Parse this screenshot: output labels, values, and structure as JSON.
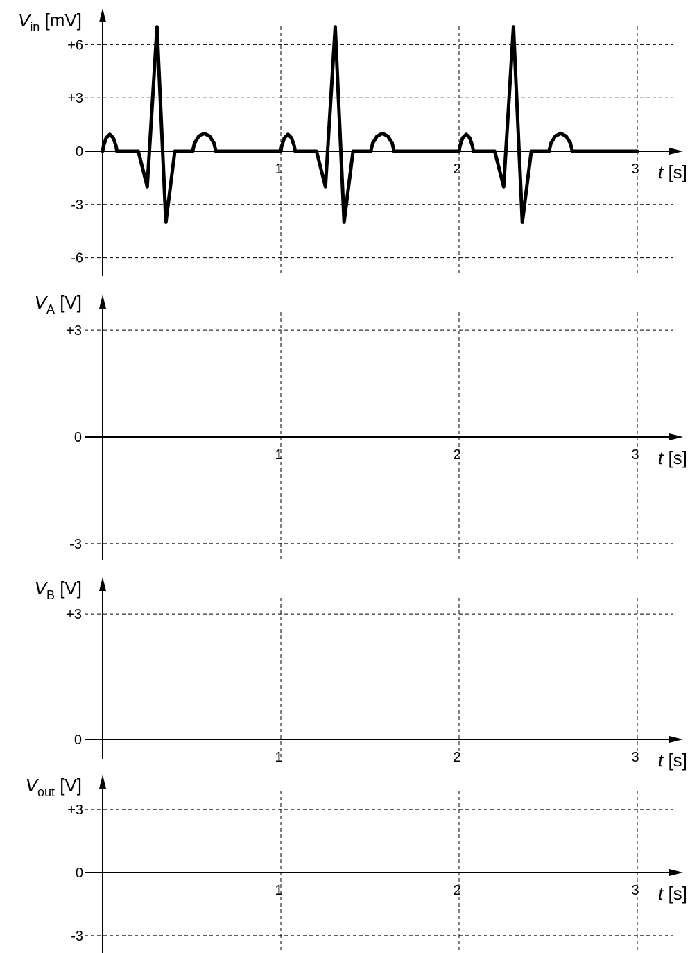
{
  "chart_data": [
    {
      "type": "line",
      "ylabel": {
        "symbol": "V",
        "sub": "in",
        "unit": "[mV]"
      },
      "xlabel": {
        "symbol": "t",
        "unit": "[s]"
      },
      "xlim": [
        0,
        3
      ],
      "ylim": [
        -6,
        6
      ],
      "x_ticks": [
        1,
        2,
        3
      ],
      "y_ticks": [
        6,
        3,
        0,
        -3,
        -6
      ],
      "y_tick_labels": [
        "+6",
        "+3",
        "0",
        "-3",
        "-6"
      ],
      "grid": true,
      "series": [
        {
          "period": 1,
          "points": [
            [
              0.0,
              0
            ],
            [
              0.005,
              0.3
            ],
            [
              0.02,
              0.75
            ],
            [
              0.04,
              0.95
            ],
            [
              0.06,
              0.75
            ],
            [
              0.075,
              0.3
            ],
            [
              0.08,
              0
            ],
            [
              0.2,
              0
            ],
            [
              0.25,
              -2
            ],
            [
              0.305,
              7
            ],
            [
              0.355,
              -4
            ],
            [
              0.405,
              0
            ],
            [
              0.505,
              0
            ],
            [
              0.515,
              0.45
            ],
            [
              0.54,
              0.85
            ],
            [
              0.57,
              1.0
            ],
            [
              0.6,
              0.85
            ],
            [
              0.625,
              0.45
            ],
            [
              0.635,
              0
            ],
            [
              1.0,
              0
            ]
          ]
        }
      ]
    },
    {
      "type": "line",
      "ylabel": {
        "symbol": "V",
        "sub": "A",
        "unit": "[V]"
      },
      "xlabel": {
        "symbol": "t",
        "unit": "[s]"
      },
      "xlim": [
        0,
        3
      ],
      "ylim": [
        -3,
        3
      ],
      "x_ticks": [
        1,
        2,
        3
      ],
      "y_ticks": [
        3,
        0,
        -3
      ],
      "y_tick_labels": [
        "+3",
        "0",
        "-3"
      ],
      "grid": true,
      "series": []
    },
    {
      "type": "line",
      "ylabel": {
        "symbol": "V",
        "sub": "B",
        "unit": "[V]"
      },
      "xlabel": {
        "symbol": "t",
        "unit": "[s]"
      },
      "xlim": [
        0,
        3
      ],
      "ylim": [
        0,
        3
      ],
      "x_ticks": [
        1,
        2,
        3
      ],
      "y_ticks": [
        3,
        0
      ],
      "y_tick_labels": [
        "+3",
        "0"
      ],
      "grid": true,
      "series": []
    },
    {
      "type": "line",
      "ylabel": {
        "symbol": "V",
        "sub": "out",
        "unit": "[V]"
      },
      "xlabel": {
        "symbol": "t",
        "unit": "[s]"
      },
      "xlim": [
        0,
        3
      ],
      "ylim": [
        -3,
        3
      ],
      "x_ticks": [
        1,
        2,
        3
      ],
      "y_ticks": [
        3,
        0,
        -3
      ],
      "y_tick_labels": [
        "+3",
        "0",
        "-3"
      ],
      "grid": true,
      "series": []
    }
  ]
}
